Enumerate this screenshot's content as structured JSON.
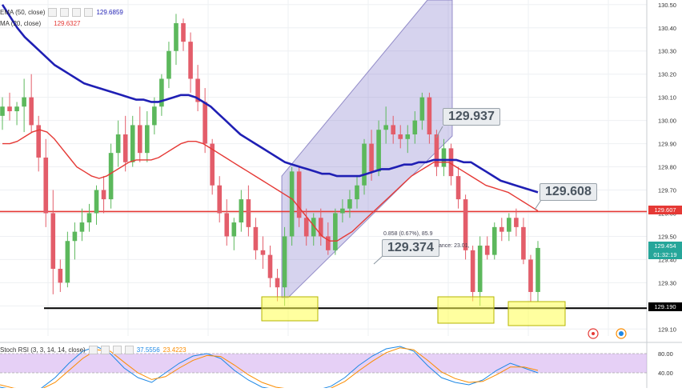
{
  "legends": {
    "ema": {
      "label": "EMA (50, close)",
      "value": "129.6859",
      "color": "#1f1fb4"
    },
    "ma": {
      "label": "MA (20, close)",
      "value": "129.6327",
      "color": "#e53935"
    },
    "rsi": {
      "label": "Stoch RSI (3, 3, 14, 14, close)",
      "k": "37.5556",
      "d": "23.4223"
    }
  },
  "callouts": {
    "high": "129.937",
    "right": "129.608",
    "mid": "129.374"
  },
  "fib_text": {
    "line1": "0.858 (0.67%), 85.9",
    "line2": "ance: 23.01,"
  },
  "price_tags": {
    "resistance": "129.607",
    "current": "129.454",
    "countdown": "01:32:19",
    "support": "129.190"
  },
  "chart_data": {
    "type": "candlestick",
    "yaxis_ticks": [
      "130.50",
      "130.40",
      "130.30",
      "130.20",
      "130.10",
      "130.00",
      "129.90",
      "129.80",
      "129.70",
      "129.60",
      "129.50",
      "129.40",
      "129.30",
      "129.20",
      "129.10"
    ],
    "rsi_ticks": [
      "80.00",
      "40.00"
    ],
    "horizontal_lines": [
      {
        "value": 129.607,
        "color": "#e53935"
      },
      {
        "value": 129.19,
        "color": "#000000"
      }
    ],
    "candles": [
      [
        130.02,
        130.1,
        129.96,
        130.06
      ],
      [
        130.06,
        130.12,
        130.0,
        130.04
      ],
      [
        130.04,
        130.08,
        129.98,
        130.06
      ],
      [
        130.06,
        130.18,
        129.95,
        130.1
      ],
      [
        130.1,
        130.2,
        129.95,
        129.98
      ],
      [
        129.98,
        130.02,
        129.78,
        129.84
      ],
      [
        129.84,
        129.92,
        129.54,
        129.6
      ],
      [
        129.6,
        129.7,
        129.25,
        129.36
      ],
      [
        129.36,
        129.4,
        129.26,
        129.3
      ],
      [
        129.3,
        129.52,
        129.28,
        129.48
      ],
      [
        129.48,
        129.56,
        129.4,
        129.52
      ],
      [
        129.52,
        129.62,
        129.48,
        129.56
      ],
      [
        129.56,
        129.64,
        129.52,
        129.6
      ],
      [
        129.6,
        129.72,
        129.55,
        129.7
      ],
      [
        129.7,
        129.76,
        129.6,
        129.66
      ],
      [
        129.66,
        129.9,
        129.62,
        129.86
      ],
      [
        129.86,
        130.0,
        129.8,
        129.94
      ],
      [
        129.94,
        130.02,
        129.78,
        129.82
      ],
      [
        129.82,
        130.02,
        129.8,
        129.98
      ],
      [
        129.98,
        130.06,
        129.82,
        129.86
      ],
      [
        129.86,
        130.04,
        129.82,
        129.98
      ],
      [
        129.98,
        130.1,
        129.94,
        130.06
      ],
      [
        130.06,
        130.2,
        130.02,
        130.18
      ],
      [
        130.18,
        130.34,
        130.14,
        130.3
      ],
      [
        130.3,
        130.46,
        130.24,
        130.42
      ],
      [
        130.42,
        130.44,
        130.3,
        130.34
      ],
      [
        130.34,
        130.38,
        130.12,
        130.18
      ],
      [
        130.18,
        130.24,
        130.04,
        130.08
      ],
      [
        130.08,
        130.14,
        129.86,
        129.9
      ],
      [
        129.9,
        129.92,
        129.68,
        129.72
      ],
      [
        129.72,
        129.76,
        129.56,
        129.6
      ],
      [
        129.6,
        129.66,
        129.46,
        129.5
      ],
      [
        129.5,
        129.58,
        129.44,
        129.56
      ],
      [
        129.56,
        129.7,
        129.52,
        129.66
      ],
      [
        129.66,
        129.72,
        129.5,
        129.54
      ],
      [
        129.54,
        129.58,
        129.4,
        129.44
      ],
      [
        129.44,
        129.5,
        129.36,
        129.42
      ],
      [
        129.42,
        129.46,
        129.28,
        129.32
      ],
      [
        129.32,
        129.36,
        129.22,
        129.28
      ],
      [
        129.28,
        129.54,
        129.2,
        129.5
      ],
      [
        129.5,
        129.8,
        129.46,
        129.78
      ],
      [
        129.78,
        129.8,
        129.54,
        129.58
      ],
      [
        129.58,
        129.62,
        129.46,
        129.5
      ],
      [
        129.5,
        129.6,
        129.46,
        129.58
      ],
      [
        129.58,
        129.62,
        129.46,
        129.5
      ],
      [
        129.5,
        129.56,
        129.42,
        129.44
      ],
      [
        129.44,
        129.62,
        129.42,
        129.6
      ],
      [
        129.6,
        129.66,
        129.56,
        129.62
      ],
      [
        129.62,
        129.7,
        129.58,
        129.66
      ],
      [
        129.66,
        129.76,
        129.62,
        129.72
      ],
      [
        129.72,
        129.92,
        129.68,
        129.9
      ],
      [
        129.9,
        129.96,
        129.74,
        129.78
      ],
      [
        129.78,
        130.0,
        129.76,
        129.96
      ],
      [
        129.96,
        130.06,
        129.9,
        129.98
      ],
      [
        129.98,
        130.02,
        129.9,
        129.94
      ],
      [
        129.94,
        129.98,
        129.88,
        129.92
      ],
      [
        129.92,
        129.98,
        129.86,
        129.94
      ],
      [
        129.94,
        130.04,
        129.9,
        130.0
      ],
      [
        130.0,
        130.12,
        129.96,
        130.1
      ],
      [
        130.1,
        130.12,
        129.9,
        129.94
      ],
      [
        129.94,
        129.96,
        129.76,
        129.8
      ],
      [
        129.8,
        129.92,
        129.76,
        129.88
      ],
      [
        129.88,
        129.9,
        129.72,
        129.76
      ],
      [
        129.76,
        129.8,
        129.62,
        129.66
      ],
      [
        129.66,
        129.68,
        129.4,
        129.44
      ],
      [
        129.44,
        129.46,
        129.22,
        129.26
      ],
      [
        129.26,
        129.5,
        129.2,
        129.46
      ],
      [
        129.46,
        129.5,
        129.4,
        129.42
      ],
      [
        129.42,
        129.56,
        129.4,
        129.54
      ],
      [
        129.54,
        129.58,
        129.48,
        129.52
      ],
      [
        129.52,
        129.6,
        129.48,
        129.58
      ],
      [
        129.58,
        129.62,
        129.5,
        129.54
      ],
      [
        129.54,
        129.58,
        129.38,
        129.4
      ],
      [
        129.4,
        129.42,
        129.22,
        129.26
      ],
      [
        129.26,
        129.48,
        129.22,
        129.45
      ]
    ],
    "ema50": [
      130.5,
      130.45,
      130.4,
      130.36,
      130.33,
      130.3,
      130.27,
      130.24,
      130.22,
      130.2,
      130.18,
      130.16,
      130.15,
      130.14,
      130.13,
      130.12,
      130.11,
      130.1,
      130.09,
      130.09,
      130.08,
      130.08,
      130.09,
      130.1,
      130.11,
      130.11,
      130.1,
      130.08,
      130.06,
      130.03,
      130.0,
      129.97,
      129.94,
      129.92,
      129.9,
      129.88,
      129.86,
      129.84,
      129.82,
      129.81,
      129.8,
      129.79,
      129.78,
      129.77,
      129.77,
      129.76,
      129.76,
      129.76,
      129.76,
      129.77,
      129.78,
      129.79,
      129.79,
      129.8,
      129.81,
      129.81,
      129.82,
      129.82,
      129.83,
      129.83,
      129.83,
      129.83,
      129.82,
      129.82,
      129.8,
      129.78,
      129.76,
      129.74,
      129.73,
      129.72,
      129.71,
      129.7,
      129.69
    ],
    "ma20": [
      129.9,
      129.9,
      129.91,
      129.93,
      129.95,
      129.96,
      129.95,
      129.92,
      129.88,
      129.84,
      129.8,
      129.78,
      129.76,
      129.75,
      129.76,
      129.78,
      129.8,
      129.82,
      129.83,
      129.83,
      129.83,
      129.84,
      129.86,
      129.88,
      129.9,
      129.91,
      129.91,
      129.9,
      129.88,
      129.86,
      129.84,
      129.82,
      129.8,
      129.78,
      129.76,
      129.74,
      129.72,
      129.7,
      129.68,
      129.66,
      129.62,
      129.58,
      129.54,
      129.5,
      129.48,
      129.48,
      129.5,
      129.52,
      129.55,
      129.58,
      129.61,
      129.64,
      129.67,
      129.7,
      129.73,
      129.76,
      129.78,
      129.8,
      129.82,
      129.82,
      129.82,
      129.8,
      129.78,
      129.76,
      129.74,
      129.72,
      129.71,
      129.7,
      129.69,
      129.67,
      129.65,
      129.63,
      129.61
    ]
  }
}
